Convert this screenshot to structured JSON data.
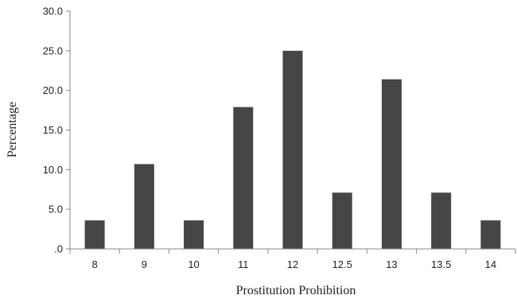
{
  "chart_data": {
    "type": "bar",
    "title": "",
    "xlabel": "Prostitution Prohibition",
    "ylabel": "Percentage",
    "categories": [
      "8",
      "9",
      "10",
      "11",
      "12",
      "12.5",
      "13",
      "13.5",
      "14"
    ],
    "values": [
      3.6,
      10.7,
      3.6,
      17.9,
      25.0,
      7.1,
      21.4,
      7.1,
      3.6
    ],
    "ylim": [
      0,
      30
    ],
    "y_ticks": [
      ".0",
      "5.0",
      "10.0",
      "15.0",
      "20.0",
      "25.0",
      "30.0"
    ],
    "grid": false,
    "bar_color": "#464646"
  }
}
